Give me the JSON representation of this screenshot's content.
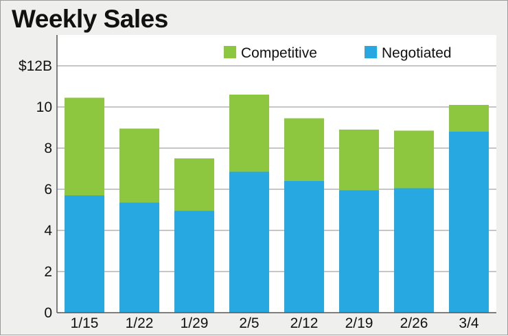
{
  "chart_data": {
    "type": "bar",
    "stacked": true,
    "title": "Weekly Sales",
    "categories": [
      "1/15",
      "1/22",
      "1/29",
      "2/5",
      "2/12",
      "2/19",
      "2/26",
      "3/4"
    ],
    "series": [
      {
        "name": "Negotiated",
        "color": "#27a8e0",
        "values": [
          5.7,
          5.35,
          4.95,
          6.85,
          6.4,
          5.95,
          6.05,
          8.8
        ]
      },
      {
        "name": "Competitive",
        "color": "#8dc63f",
        "values": [
          4.75,
          3.6,
          2.55,
          3.75,
          3.05,
          2.95,
          2.8,
          1.3
        ]
      }
    ],
    "ylim": [
      0,
      12
    ],
    "yticks": [
      0,
      2,
      4,
      6,
      8,
      10,
      12
    ],
    "ytick_labels": [
      "0",
      "2",
      "4",
      "6",
      "8",
      "10",
      "$12B"
    ],
    "legend": {
      "placement": "top",
      "order": [
        "Competitive",
        "Negotiated"
      ]
    },
    "grid": true,
    "xlabel": "",
    "ylabel": ""
  }
}
